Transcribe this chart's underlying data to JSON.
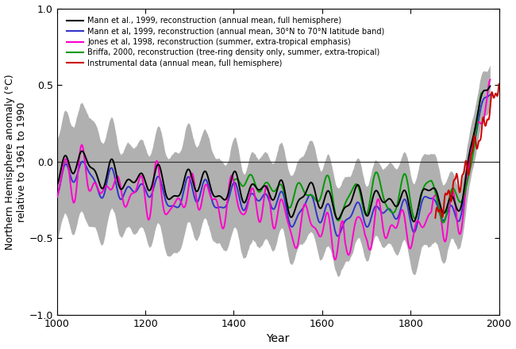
{
  "xlabel": "Year",
  "ylabel": "Northern Hemisphere anomaly (°C)\nrelative to 1961 to 1990",
  "xlim": [
    1000,
    2000
  ],
  "ylim": [
    -1.0,
    1.0
  ],
  "yticks": [
    -1.0,
    -0.5,
    0.0,
    0.5,
    1.0
  ],
  "xticks": [
    1000,
    1200,
    1400,
    1600,
    1800,
    2000
  ],
  "legend_entries": [
    "Mann $\\mathit{et\\,al.}$, 1999, reconstruction (annual mean, full hemisphere)",
    "Mann $\\mathit{et\\,al}$ 1999, reconstruction (annual mean, 30°N to 70°N latitude band)",
    "Jones $\\mathit{et\\,al}$ 1998, reconstruction (summer, extra-tropical emphasis)",
    "Briffa, 2000, reconstruction (tree-ring density only, summer, extra-tropical)",
    "Instrumental data (annual mean, full hemisphere)"
  ],
  "legend_colors": [
    "#000000",
    "#3333cc",
    "#ff00cc",
    "#009900",
    "#cc0000"
  ],
  "line_widths": [
    1.4,
    1.4,
    1.4,
    1.4,
    1.4
  ],
  "shading_color": "#b0b0b0",
  "bg_color": "#ffffff",
  "zero_line_color": "#333333"
}
